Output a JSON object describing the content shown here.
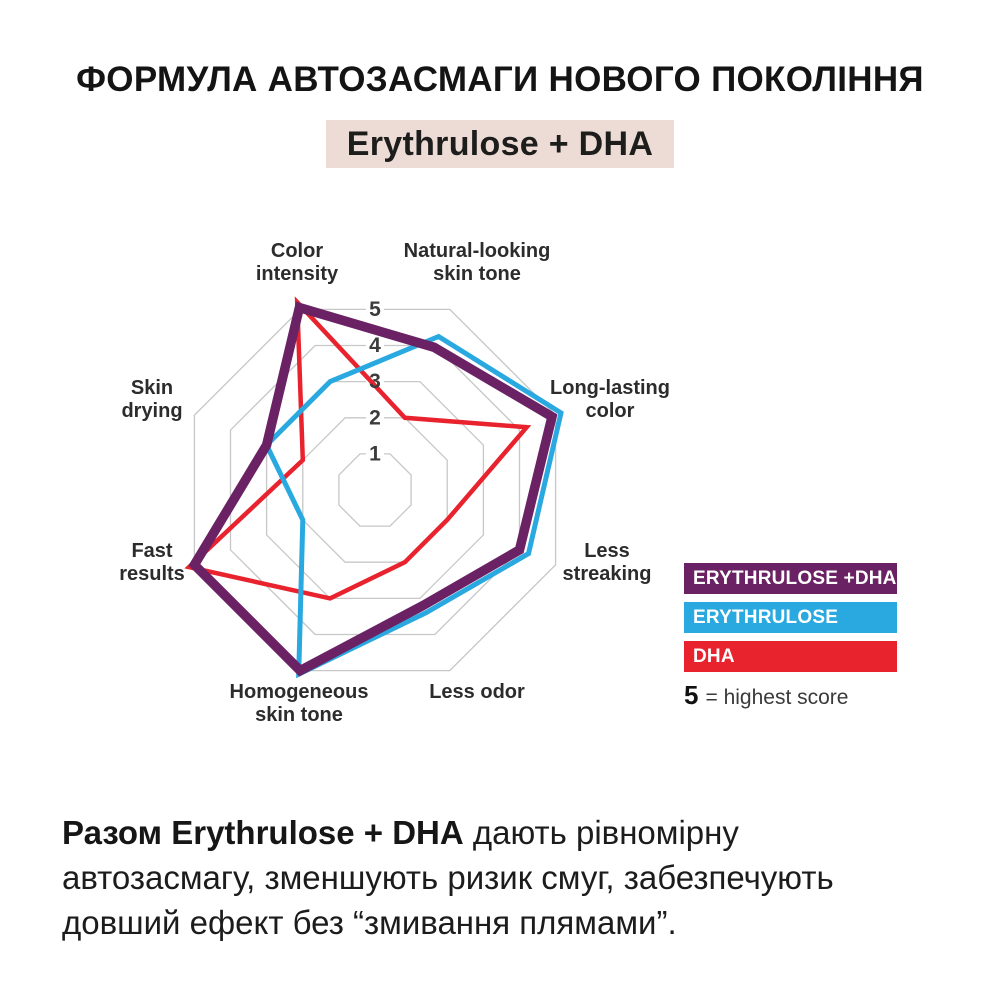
{
  "title": "ФОРМУЛА АВТОЗАСМАГИ НОВОГО ПОКОЛІННЯ",
  "badge": "Erythrulose + DHA",
  "chart_data": {
    "type": "radar",
    "scale": {
      "min": 0,
      "max": 5,
      "ticks": [
        "1",
        "2",
        "3",
        "4",
        "5"
      ]
    },
    "grid_color": "#c7c7c7",
    "tick_color": "#3c3c3c",
    "axes": [
      {
        "label": "Color intensity",
        "lines": [
          "Color",
          "intensity"
        ]
      },
      {
        "label": "Natural-looking skin tone",
        "lines": [
          "Natural-looking",
          "skin tone"
        ]
      },
      {
        "label": "Long-lasting color",
        "lines": [
          "Long-lasting",
          "color"
        ]
      },
      {
        "label": "Less streaking",
        "lines": [
          "Less",
          "streaking"
        ]
      },
      {
        "label": "Less odor",
        "lines": [
          "Less odor"
        ]
      },
      {
        "label": "Homogeneous skin tone",
        "lines": [
          "Homogeneous",
          "skin tone"
        ]
      },
      {
        "label": "Fast results",
        "lines": [
          "Fast",
          "results"
        ]
      },
      {
        "label": "Skin drying",
        "lines": [
          "Skin",
          "drying"
        ]
      }
    ],
    "series": [
      {
        "name": "ERYTHRULOSE +DHA",
        "color": "#6b2264",
        "stroke_width": 9.5,
        "values": [
          5.05,
          3.95,
          4.9,
          4.0,
          3.2,
          5.0,
          5.0,
          3.0
        ]
      },
      {
        "name": "ERYTHRULOSE",
        "color": "#29a9e0",
        "stroke_width": 5,
        "values": [
          3.0,
          4.25,
          5.15,
          4.25,
          3.4,
          5.1,
          2.0,
          3.0
        ]
      },
      {
        "name": "DHA",
        "color": "#e8232e",
        "stroke_width": 4.5,
        "values": [
          5.2,
          2.0,
          4.2,
          2.0,
          2.0,
          3.0,
          5.15,
          2.0
        ]
      }
    ]
  },
  "legend": {
    "items": [
      {
        "label": "ERYTHRULOSE +DHA"
      },
      {
        "label": "ERYTHRULOSE"
      },
      {
        "label": "DHA"
      }
    ],
    "note_value": "5",
    "note_text": "= highest score"
  },
  "description": {
    "bold_intro": "Разом Erythrulose + DHA",
    "line1_rest": " дають рівномірну",
    "line2": "автозасмагу, зменшують ризик смуг, забезпечують",
    "line3": "довший ефект без “змивання плямами”."
  }
}
